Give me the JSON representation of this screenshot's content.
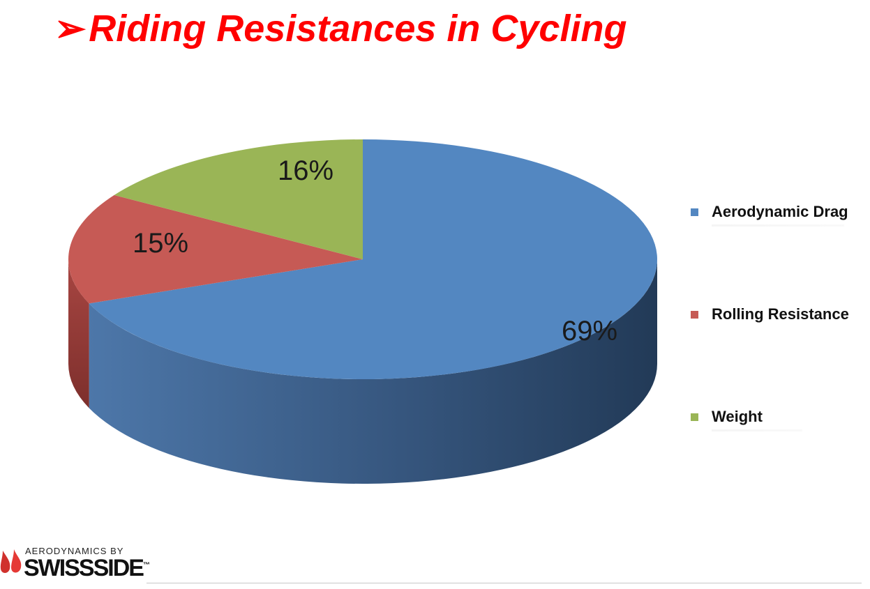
{
  "slide": {
    "bullet": "➢",
    "title": "Riding Resistances in Cycling"
  },
  "chart_data": {
    "type": "pie",
    "title": "",
    "style": "3d",
    "slices": [
      {
        "name": "Aerodynamic Drag",
        "value": 69,
        "label": "69%",
        "color": "#5387c1"
      },
      {
        "name": "Rolling Resistance",
        "value": 15,
        "label": "15%",
        "color": "#c65a55"
      },
      {
        "name": "Weight",
        "value": 16,
        "label": "16%",
        "color": "#9ab556"
      }
    ],
    "legend_placement": "right"
  },
  "logo": {
    "top_text": "AERODYNAMICS BY",
    "brand": "SWISSSIDE",
    "mark": "™",
    "drop_colors": [
      "#d0312d",
      "#e53935"
    ]
  }
}
